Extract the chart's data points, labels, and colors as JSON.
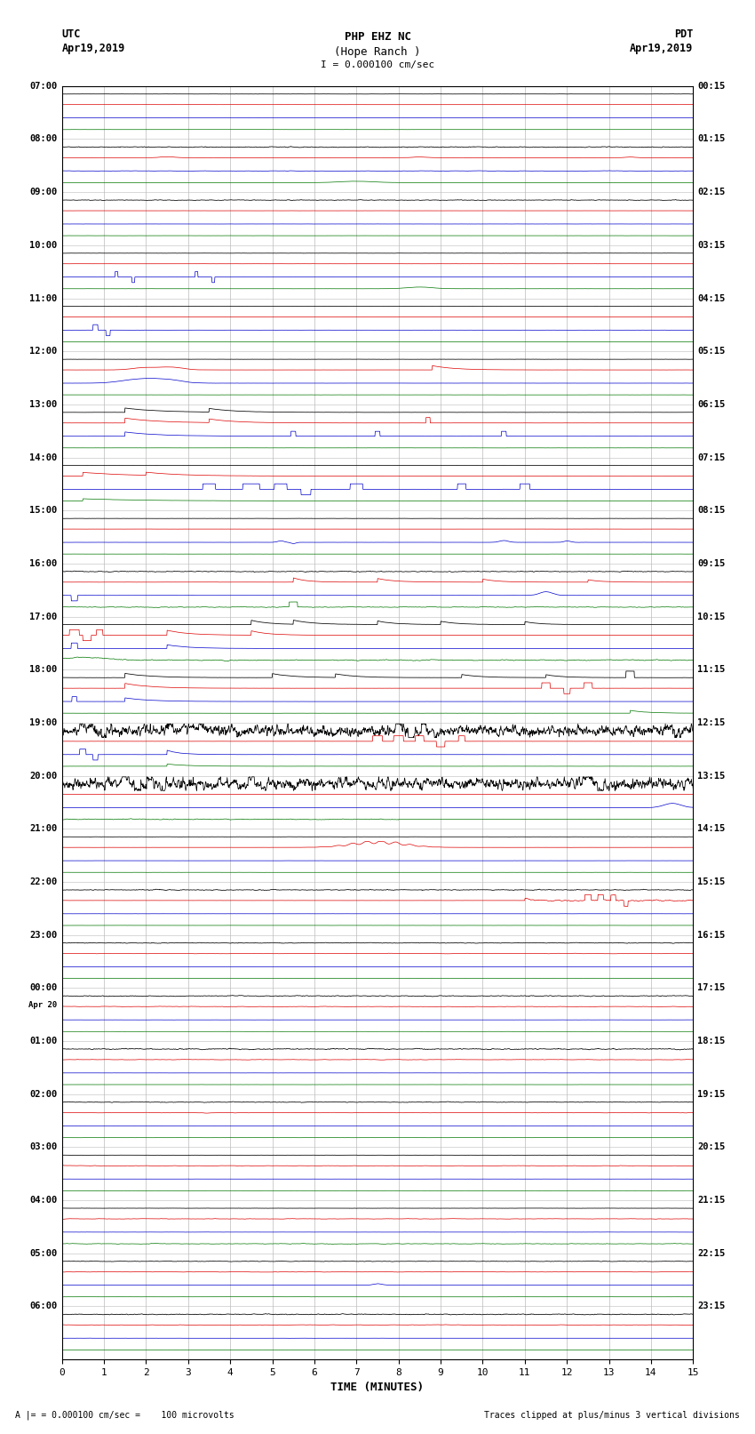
{
  "title_line1": "PHP EHZ NC",
  "title_line2": "(Hope Ranch )",
  "title_line3": "I = 0.000100 cm/sec",
  "label_utc": "UTC",
  "label_date_left": "Apr19,2019",
  "label_pdt": "PDT",
  "label_date_right": "Apr19,2019",
  "xlabel": "TIME (MINUTES)",
  "footer_left": "= 0.000100 cm/sec =    100 microvolts",
  "footer_right": "Traces clipped at plus/minus 3 vertical divisions",
  "utc_labels": [
    "07:00",
    "08:00",
    "09:00",
    "10:00",
    "11:00",
    "12:00",
    "13:00",
    "14:00",
    "15:00",
    "16:00",
    "17:00",
    "18:00",
    "19:00",
    "20:00",
    "21:00",
    "22:00",
    "23:00",
    "00:00",
    "01:00",
    "02:00",
    "03:00",
    "04:00",
    "05:00",
    "06:00"
  ],
  "pdt_labels": [
    "00:15",
    "01:15",
    "02:15",
    "03:15",
    "04:15",
    "05:15",
    "06:15",
    "07:15",
    "08:15",
    "09:15",
    "10:15",
    "11:15",
    "12:15",
    "13:15",
    "14:15",
    "15:15",
    "16:15",
    "17:15",
    "18:15",
    "19:15",
    "20:15",
    "21:15",
    "22:15",
    "23:15"
  ],
  "n_rows": 24,
  "n_minutes": 15,
  "bg_color": "#ffffff",
  "colors": {
    "black": "#000000",
    "red": "#dd0000",
    "green": "#007700",
    "blue": "#0000cc"
  },
  "grid_color": "#bbbbbb",
  "label_color": "#000000",
  "title_color": "#000000"
}
